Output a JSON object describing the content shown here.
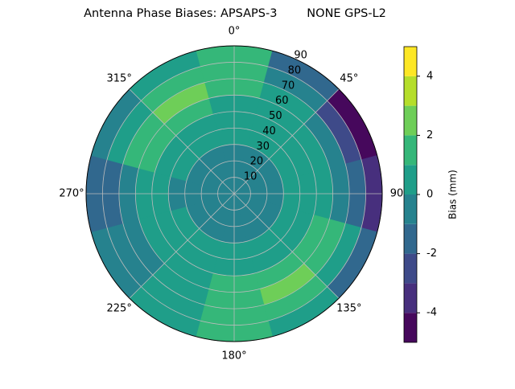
{
  "chart_data": {
    "type": "polar_contour",
    "title": "Antenna Phase Biases: APSAPS-3        NONE GPS-L2",
    "azimuths": [
      0,
      30,
      60,
      90,
      120,
      150,
      180,
      210,
      240,
      270,
      300,
      330
    ],
    "zenith_bins": [
      0,
      10,
      20,
      30,
      40,
      50,
      60,
      70,
      80,
      90
    ],
    "values": [
      [
        -0.5,
        -0.5,
        -0.3,
        0.3,
        0.5,
        0.8,
        1.2,
        1.5,
        1.5
      ],
      [
        -0.5,
        -0.5,
        -0.3,
        0.2,
        0.5,
        0.5,
        0,
        -0.5,
        -1.5
      ],
      [
        -0.5,
        -0.5,
        -0.5,
        0,
        0.5,
        0,
        -1,
        -2.5,
        -4.2
      ],
      [
        -0.5,
        -0.5,
        -0.5,
        0,
        0.5,
        0.3,
        -0.5,
        -1.5,
        -3.5
      ],
      [
        -0.5,
        -0.5,
        -0.3,
        0.3,
        0.8,
        1.2,
        1.5,
        0.5,
        -1.5
      ],
      [
        -0.5,
        -0.5,
        -0.3,
        0.5,
        0.8,
        1.5,
        2.5,
        1.2,
        0.5
      ],
      [
        -0.5,
        -0.5,
        -0.3,
        0.5,
        0.5,
        1.2,
        1.5,
        1.5,
        1.2
      ],
      [
        -0.5,
        -0.5,
        -0.3,
        0.3,
        0.5,
        0.8,
        0.5,
        0.5,
        0.3
      ],
      [
        -0.5,
        -0.5,
        -0.5,
        0,
        0.3,
        0.3,
        -0.3,
        -0.5,
        -0.8
      ],
      [
        -0.5,
        -0.5,
        -0.5,
        -0.3,
        0,
        0,
        -0.5,
        -1.2,
        -1.5
      ],
      [
        -0.5,
        -0.5,
        -0.5,
        0,
        0.5,
        1.2,
        1.2,
        0.5,
        -0.5
      ],
      [
        -0.5,
        -0.5,
        -0.3,
        0.3,
        0.8,
        1.5,
        2.5,
        1.5,
        0.8
      ]
    ],
    "rlim": [
      0,
      90
    ],
    "rticks": [
      10,
      20,
      30,
      40,
      50,
      60,
      70,
      80,
      90
    ],
    "thetaticks": [
      {
        "value": 0,
        "label": "0°"
      },
      {
        "value": 45,
        "label": "45°"
      },
      90,
      {
        "value": 135,
        "label": "135°"
      },
      {
        "value": 180,
        "label": "180°"
      },
      {
        "value": 225,
        "label": "225°"
      },
      {
        "value": 270,
        "label": "270°"
      },
      {
        "value": 315,
        "label": "315°"
      }
    ],
    "levels": [
      -5,
      -4,
      -3,
      -2,
      -1,
      0,
      1,
      2,
      3,
      4,
      5
    ],
    "colors": [
      "#46085c",
      "#472f7d",
      "#3e4a89",
      "#31688e",
      "#26828e",
      "#1f9e89",
      "#35b779",
      "#6ece58",
      "#b5de2b",
      "#fde725"
    ],
    "colorbar_label": "Bias (mm)",
    "clim": [
      -5,
      5
    ],
    "colorbar_ticks": [
      -4,
      -2,
      0,
      2,
      4
    ],
    "grid": true
  }
}
